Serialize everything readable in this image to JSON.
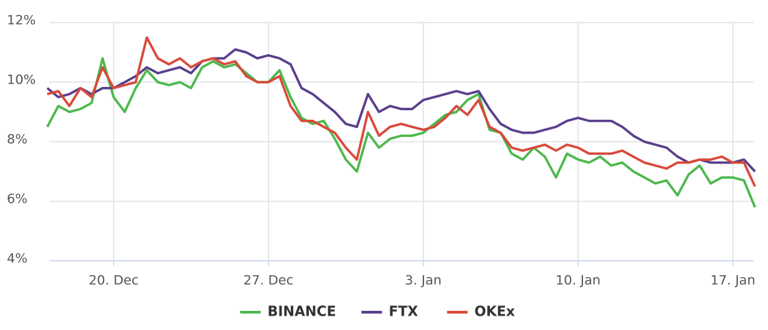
{
  "chart_data": {
    "type": "line",
    "categories": [
      null,
      null,
      null,
      null,
      null,
      null,
      "20. Dec",
      null,
      null,
      null,
      null,
      null,
      null,
      null,
      null,
      null,
      null,
      null,
      null,
      null,
      "27. Dec",
      null,
      null,
      null,
      null,
      null,
      null,
      null,
      null,
      null,
      null,
      null,
      null,
      null,
      "3. Jan",
      null,
      null,
      null,
      null,
      null,
      null,
      null,
      null,
      null,
      null,
      null,
      null,
      null,
      "10. Jan",
      null,
      null,
      null,
      null,
      null,
      null,
      null,
      null,
      null,
      null,
      null,
      null,
      null,
      "17. Jan",
      null,
      null
    ],
    "series": [
      {
        "name": "BINANCE",
        "color": "#4db84d",
        "values": [
          8.5,
          9.2,
          9.0,
          9.1,
          9.3,
          10.8,
          9.5,
          9.0,
          9.8,
          10.4,
          10.0,
          9.9,
          10.0,
          9.8,
          10.5,
          10.7,
          10.5,
          10.6,
          10.3,
          10.0,
          10.0,
          10.4,
          9.5,
          8.8,
          8.6,
          8.7,
          8.1,
          7.4,
          7.0,
          8.3,
          7.8,
          8.1,
          8.2,
          8.2,
          8.3,
          8.6,
          8.9,
          9.0,
          9.4,
          9.6,
          8.4,
          8.3,
          7.6,
          7.4,
          7.8,
          7.5,
          6.8,
          7.6,
          7.4,
          7.3,
          7.5,
          7.2,
          7.3,
          7.0,
          6.8,
          6.6,
          6.7,
          6.2,
          6.9,
          7.2,
          6.6,
          6.8,
          6.8,
          6.7,
          5.8
        ]
      },
      {
        "name": "FTX",
        "color": "#5a3e8c",
        "values": [
          9.8,
          9.5,
          9.6,
          9.8,
          9.6,
          9.8,
          9.8,
          10.0,
          10.2,
          10.5,
          10.3,
          10.4,
          10.5,
          10.3,
          10.7,
          10.8,
          10.8,
          11.1,
          11.0,
          10.8,
          10.9,
          10.8,
          10.6,
          9.8,
          9.6,
          9.3,
          9.0,
          8.6,
          8.5,
          9.6,
          9.0,
          9.2,
          9.1,
          9.1,
          9.4,
          9.5,
          9.6,
          9.7,
          9.6,
          9.7,
          9.1,
          8.6,
          8.4,
          8.3,
          8.3,
          8.4,
          8.5,
          8.7,
          8.8,
          8.7,
          8.7,
          8.7,
          8.5,
          8.2,
          8.0,
          7.9,
          7.8,
          7.5,
          7.3,
          7.4,
          7.3,
          7.3,
          7.3,
          7.4,
          7.0
        ]
      },
      {
        "name": "OKEx",
        "color": "#d9493b",
        "values": [
          9.6,
          9.7,
          9.2,
          9.8,
          9.5,
          10.5,
          9.8,
          9.9,
          10.0,
          11.5,
          10.8,
          10.6,
          10.8,
          10.5,
          10.7,
          10.8,
          10.6,
          10.7,
          10.2,
          10.0,
          10.0,
          10.2,
          9.2,
          8.7,
          8.7,
          8.5,
          8.3,
          7.8,
          7.4,
          9.0,
          8.2,
          8.5,
          8.6,
          8.5,
          8.4,
          8.5,
          8.8,
          9.2,
          8.9,
          9.4,
          8.5,
          8.3,
          7.8,
          7.7,
          7.8,
          7.9,
          7.7,
          7.9,
          7.8,
          7.6,
          7.6,
          7.6,
          7.7,
          7.5,
          7.3,
          7.2,
          7.1,
          7.3,
          7.3,
          7.4,
          7.4,
          7.5,
          7.3,
          7.3,
          6.5
        ]
      }
    ],
    "ylim": [
      4,
      12
    ],
    "yticks": [
      {
        "value": 4,
        "label": "4%"
      },
      {
        "value": 6,
        "label": "6%"
      },
      {
        "value": 8,
        "label": "8%"
      },
      {
        "value": 10,
        "label": "10%"
      },
      {
        "value": 12,
        "label": "12%"
      }
    ],
    "grid": true,
    "legend": "bottom"
  }
}
